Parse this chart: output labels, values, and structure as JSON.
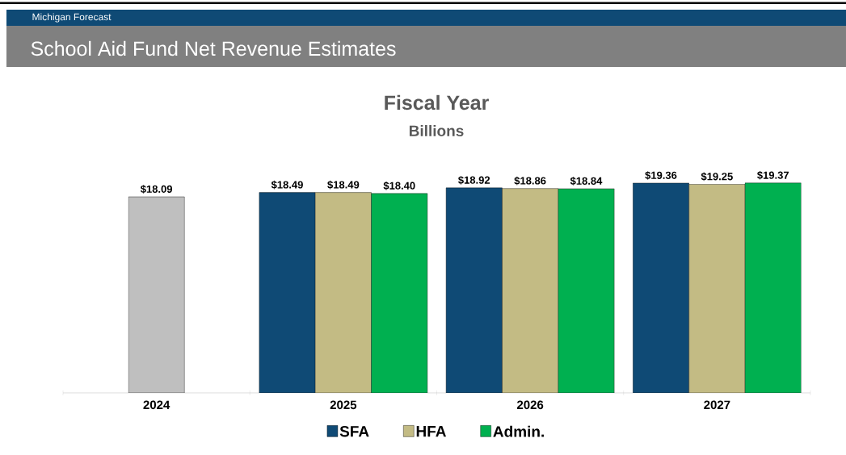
{
  "chart_data": {
    "type": "bar",
    "title": "School Aid Fund Net Revenue Estimates",
    "subtitle": "Fiscal Year",
    "annotations": [
      "Michigan Forecast",
      "Billions"
    ],
    "categories": [
      "2024",
      "2025",
      "2026",
      "2027"
    ],
    "series": [
      {
        "color": "#bfbfbf",
        "values": [
          18.09,
          null,
          null,
          null
        ],
        "value_labels": [
          "$18.09",
          null,
          null,
          null
        ]
      },
      {
        "name": "SFA",
        "color": "#0f4a75",
        "values": [
          null,
          18.49,
          18.92,
          19.36
        ],
        "value_labels": [
          null,
          "$18.49",
          "$18.92",
          "$19.36"
        ]
      },
      {
        "name": "HFA",
        "color": "#c3bb84",
        "values": [
          null,
          18.49,
          18.86,
          19.25
        ],
        "value_labels": [
          null,
          "$18.49",
          "$18.86",
          "$19.25"
        ]
      },
      {
        "name": "Admin.",
        "color": "#00b050",
        "values": [
          null,
          18.4,
          18.84,
          19.37
        ],
        "value_labels": [
          null,
          "$18.40",
          "$18.84",
          "$19.37"
        ]
      }
    ],
    "legend": "bottom"
  }
}
